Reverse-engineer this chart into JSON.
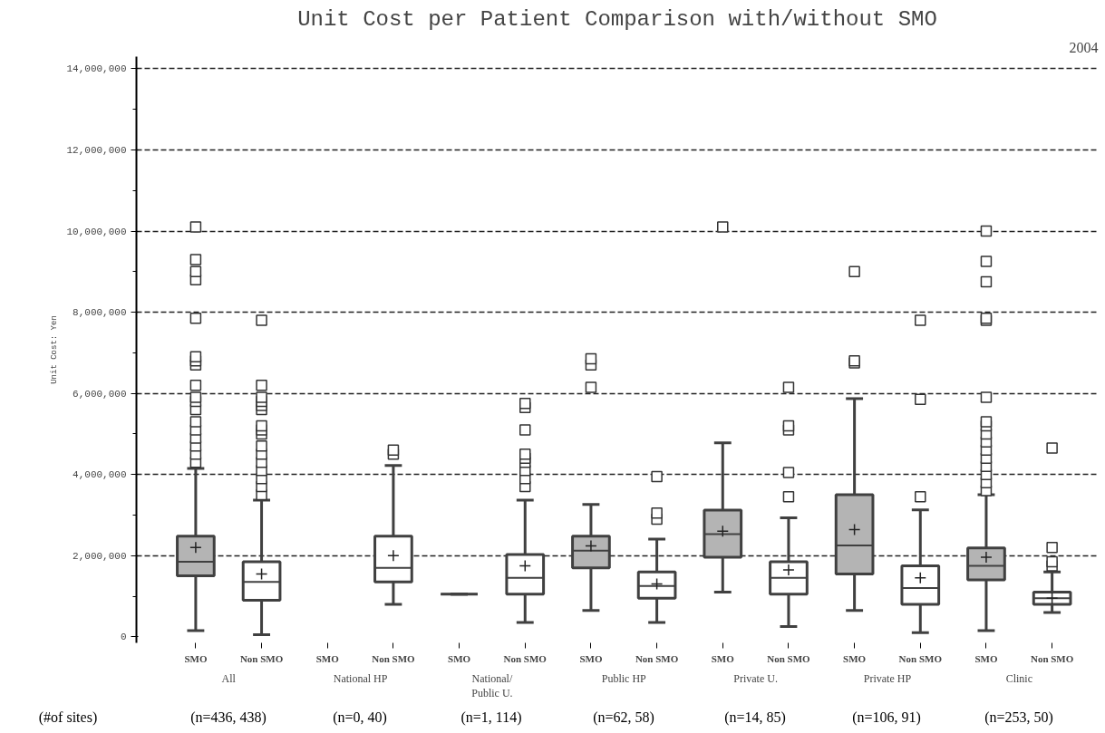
{
  "chart_data": {
    "type": "box",
    "title": "Unit Cost per Patient Comparison with/without SMO",
    "ylabel": "Unit Cost: Yen",
    "categories": [
      "SMO",
      "Non SMO",
      "SMO",
      "Non SMO",
      "SMO",
      "Non SMO",
      "SMO",
      "Non SMO",
      "SMO",
      "Non SMO",
      "SMO",
      "Non SMO",
      "SMO",
      "Non SMO"
    ],
    "colors": [
      "#b4b4b4",
      "#ffffff",
      "#b4b4b4",
      "#ffffff",
      "#404040",
      "#ffffff",
      "#b4b4b4",
      "#ffffff",
      "#b4b4b4",
      "#ffffff",
      "#b4b4b4",
      "#ffffff",
      "#b4b4b4",
      "#ffffff"
    ],
    "boxes": [
      {
        "low": 150000,
        "q1": 1500000,
        "median": 1850000,
        "q3": 2480000,
        "high": 4150000,
        "mean": 2200000,
        "outliers": [
          4300000,
          4500000,
          4700000,
          4900000,
          5100000,
          5300000,
          5600000,
          5800000,
          5900000,
          6200000,
          6700000,
          6800000,
          6900000,
          7850000,
          8800000,
          9000000,
          9300000,
          10100000
        ]
      },
      {
        "low": 50000,
        "q1": 900000,
        "median": 1350000,
        "q3": 1850000,
        "high": 3370000,
        "mean": 1550000,
        "outliers": [
          3500000,
          3700000,
          3900000,
          4100000,
          4300000,
          4500000,
          4700000,
          5000000,
          5100000,
          5200000,
          5600000,
          5700000,
          5800000,
          5900000,
          6200000,
          7800000
        ]
      },
      null,
      {
        "low": 800000,
        "q1": 1350000,
        "median": 1700000,
        "q3": 2480000,
        "high": 4220000,
        "mean": 2000000,
        "outliers": [
          4500000,
          4600000
        ]
      },
      {
        "low": 1050000,
        "q1": 1050000,
        "median": 1050000,
        "q3": 1050000,
        "high": 1050000
      },
      {
        "low": 350000,
        "q1": 1050000,
        "median": 1450000,
        "q3": 2030000,
        "high": 3370000,
        "mean": 1750000,
        "outliers": [
          3700000,
          3900000,
          4100000,
          4300000,
          4400000,
          4500000,
          5100000,
          5650000,
          5750000
        ]
      },
      {
        "low": 650000,
        "q1": 1700000,
        "median": 2120000,
        "q3": 2480000,
        "high": 3260000,
        "mean": 2240000,
        "outliers": [
          6150000,
          6700000,
          6850000
        ]
      },
      {
        "low": 350000,
        "q1": 950000,
        "median": 1250000,
        "q3": 1600000,
        "high": 2410000,
        "mean": 1300000,
        "outliers": [
          2900000,
          3050000,
          3950000
        ]
      },
      {
        "low": 1100000,
        "q1": 1960000,
        "median": 2530000,
        "q3": 3120000,
        "high": 4780000,
        "mean": 2600000,
        "outliers": [
          10100000
        ]
      },
      {
        "low": 250000,
        "q1": 1050000,
        "median": 1450000,
        "q3": 1850000,
        "high": 2930000,
        "mean": 1650000,
        "outliers": [
          3450000,
          4050000,
          5100000,
          5200000,
          6150000
        ]
      },
      {
        "low": 650000,
        "q1": 1550000,
        "median": 2250000,
        "q3": 3500000,
        "high": 5870000,
        "mean": 2640000,
        "outliers": [
          6750000,
          6800000,
          9000000
        ]
      },
      {
        "low": 100000,
        "q1": 800000,
        "median": 1200000,
        "q3": 1750000,
        "high": 3130000,
        "mean": 1450000,
        "outliers": [
          3450000,
          5850000,
          7800000
        ]
      },
      {
        "low": 150000,
        "q1": 1400000,
        "median": 1750000,
        "q3": 2190000,
        "high": 3500000,
        "mean": 1960000,
        "outliers": [
          3600000,
          3800000,
          4000000,
          4200000,
          4400000,
          4600000,
          4800000,
          5000000,
          5200000,
          5300000,
          5900000,
          7800000,
          7850000,
          8750000,
          9250000,
          10000000
        ]
      },
      {
        "low": 600000,
        "q1": 800000,
        "median": 950000,
        "q3": 1100000,
        "high": 1600000,
        "mean": 950000,
        "outliers": [
          1750000,
          1850000,
          2200000,
          4650000
        ]
      }
    ],
    "ylim": [
      -150000,
      14300000
    ],
    "yticks": [
      0,
      {
        "value": 2000000,
        "label": "2,000,000"
      },
      {
        "value": 4000000,
        "label": "4,000,000"
      },
      {
        "value": 6000000,
        "label": "6,000,000"
      },
      {
        "value": 8000000,
        "label": "8,000,000"
      },
      {
        "value": 10000000,
        "label": "10,000,000"
      },
      {
        "value": 12000000,
        "label": "12,000,000"
      },
      {
        "value": 14000000,
        "label": "14,000,000"
      }
    ],
    "grid": "y",
    "marker": "square",
    "annotations": [
      "2004",
      "(#of sites)",
      "All",
      "National HP",
      "National/\nPublic U.",
      "Public HP",
      "Private U.",
      "Private HP",
      "Clinic",
      "(n=436, 438)",
      "(n=0, 40)",
      "(n=1, 114)",
      "(n=62, 58)",
      "(n=14, 85)",
      "(n=106, 91)",
      "(n=253, 50)"
    ]
  }
}
